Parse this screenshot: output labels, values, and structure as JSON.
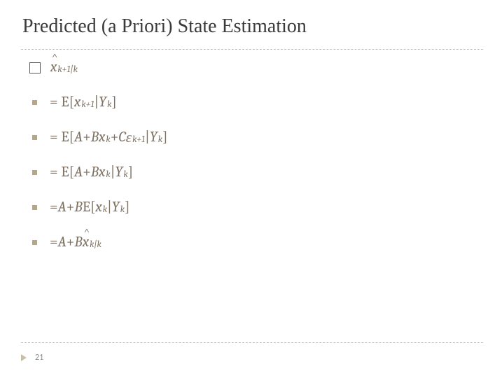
{
  "title": "Predicted (a Priori) State Estimation",
  "text_color": "#7d7163",
  "bullet_color": "#b3a78a",
  "divider_color": "#bfbfbf",
  "font_size_title": 28,
  "font_size_math": 21,
  "line0": {
    "type": "definition",
    "symbol": "x",
    "hat": true,
    "subscript": "k+1|k"
  },
  "lines": [
    {
      "latex": "= E[x_{k+1} | Y_k]"
    },
    {
      "latex": "= E[A + B x_k + C ε_{k+1} | Y_k]"
    },
    {
      "latex": "= E[A + B x_k | Y_k]"
    },
    {
      "latex": "= A + B E[x_k | Y_k]"
    },
    {
      "latex": "= A + B x̂_{k|k}"
    }
  ],
  "eq1": {
    "lhs": "= E[",
    "x": "x",
    "x_sub": "k+1",
    "mid": "|",
    "Y": "Y",
    "Y_sub": "k",
    "close": "]"
  },
  "eq2": {
    "lhs": "= E[",
    "A": "A",
    "plus1": " + ",
    "B": "B",
    "x": "x",
    "x_sub": "k",
    "plus2": " + ",
    "C": "C",
    "eps": "ε",
    "eps_sub": "k+1",
    "mid": "|",
    "Y": "Y",
    "Y_sub": "k",
    "close": "]"
  },
  "eq3": {
    "lhs": "= E[",
    "A": "A",
    "plus1": " + ",
    "B": "B",
    "x": "x",
    "x_sub": "k",
    "mid": "|",
    "Y": "Y",
    "Y_sub": "k",
    "close": "]"
  },
  "eq4": {
    "lhs": "= ",
    "A": "A",
    "plus1": " + ",
    "B": "B",
    "sp": " ",
    "E": "E[",
    "x": "x",
    "x_sub": "k",
    "mid": "|",
    "Y": "Y",
    "Y_sub": "k",
    "close": "]"
  },
  "eq5": {
    "lhs": "= ",
    "A": "A",
    "plus1": " + ",
    "B": "B",
    "x": "x",
    "x_sub": "k|k"
  },
  "page_number": "21"
}
